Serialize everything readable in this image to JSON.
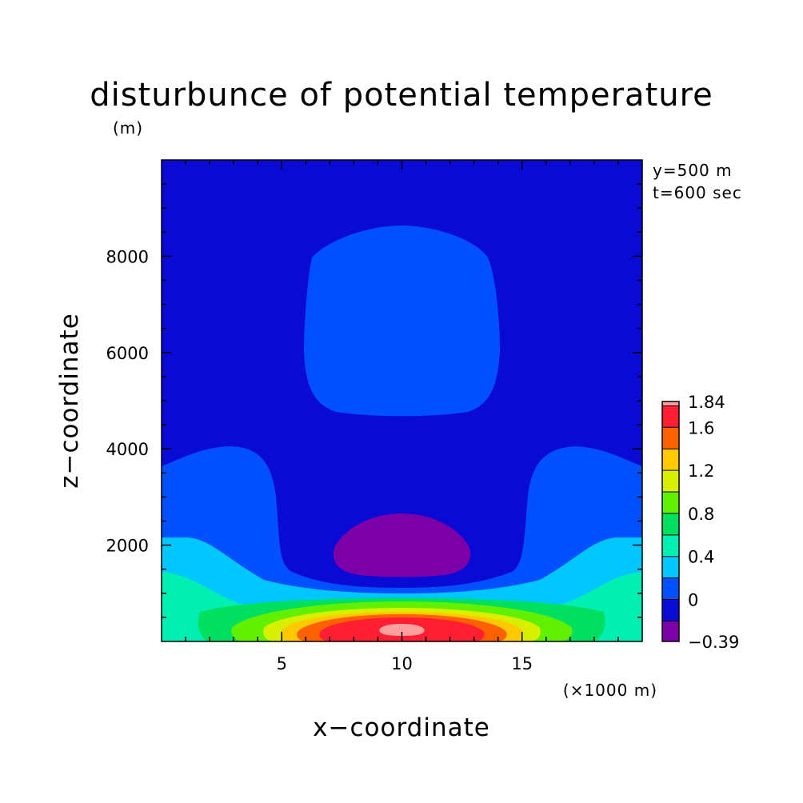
{
  "chart_data": {
    "type": "heatmap",
    "subtype": "filled-contour",
    "title": "disturbunce of potential temperature",
    "subtitle": "(m)",
    "xlabel": "x−coordinate",
    "ylabel": "z−coordinate",
    "x_unit": "(×1000 m)",
    "annotations": [
      "y=500 m",
      "t=600 sec"
    ],
    "xlim": [
      0,
      20
    ],
    "ylim": [
      0,
      10000
    ],
    "xticks": [
      5,
      10,
      15
    ],
    "xtick_labels": [
      "5",
      "10",
      "15"
    ],
    "yticks": [
      2000,
      4000,
      6000,
      8000
    ],
    "ytick_labels": [
      "2000",
      "4000",
      "6000",
      "8000"
    ],
    "grid": false,
    "colorbar": {
      "labels": [
        "1.84",
        "1.6",
        "1.2",
        "0.8",
        "0.4",
        "0",
        "−0.39"
      ],
      "levels": [
        -0.39,
        -0.2,
        0,
        0.2,
        0.4,
        0.6,
        0.8,
        1.0,
        1.2,
        1.4,
        1.6,
        1.8,
        1.84
      ],
      "colors": [
        "#7b00a8",
        "#0a0ad6",
        "#0050ff",
        "#00c8ff",
        "#00f0b4",
        "#00e060",
        "#60f000",
        "#d8f000",
        "#ffc800",
        "#ff6000",
        "#ff1e32",
        "#ffa0a0"
      ]
    },
    "peak": {
      "x": 10,
      "z": 300,
      "value": 1.84
    },
    "min": {
      "x": 10,
      "z": 1800,
      "value": -0.39
    },
    "fields": [
      {
        "name": "warm bubble",
        "center_x": 10,
        "center_z": 0
      },
      {
        "name": "upper positive anomaly",
        "center_x": 10,
        "center_z": 6800
      },
      {
        "name": "cold anomaly",
        "center_x": 10,
        "center_z": 1800
      }
    ]
  }
}
